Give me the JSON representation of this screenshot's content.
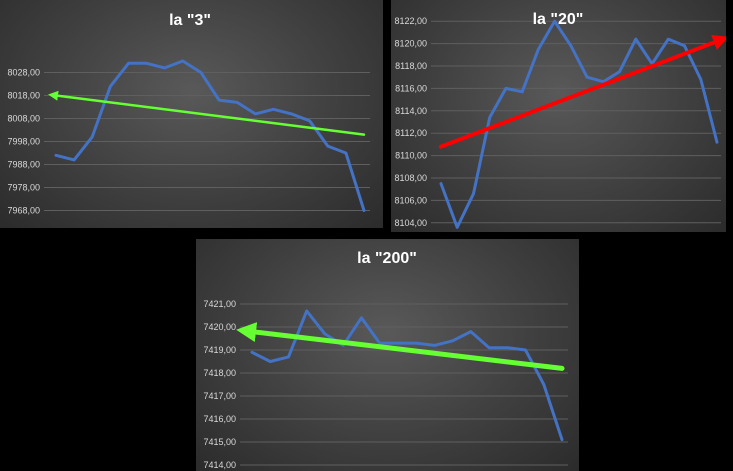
{
  "chart_data": [
    {
      "type": "line",
      "title": "la \"3\"",
      "ylim": [
        7963,
        8043
      ],
      "yticks": [
        "7968,00",
        "7978,00",
        "7988,00",
        "7998,00",
        "8008,00",
        "8018,00",
        "8028,00"
      ],
      "grid": true,
      "series": [
        {
          "values": [
            7992,
            7990,
            8000,
            8022,
            8032,
            8032,
            8030,
            8033,
            8028,
            8016,
            8015,
            8010,
            8012,
            8010,
            8007,
            7996,
            7993,
            7968
          ]
        }
      ],
      "trend_arrow": {
        "from": [
          0,
          8018
        ],
        "to": [
          17,
          8001
        ],
        "color": "#66ff33",
        "arrowhead_at_start": true
      }
    },
    {
      "type": "line",
      "title": "la \"20\"",
      "ylim": [
        8103,
        8123
      ],
      "yticks": [
        "8104,00",
        "8106,00",
        "8108,00",
        "8110,00",
        "8112,00",
        "8114,00",
        "8116,00",
        "8118,00",
        "8120,00",
        "8122,00"
      ],
      "grid": true,
      "series": [
        {
          "values": [
            8107.5,
            8103.6,
            8106.6,
            8113.4,
            8116.0,
            8115.7,
            8119.5,
            8122.0,
            8119.8,
            8117.0,
            8116.6,
            8117.5,
            8120.4,
            8118.2,
            8120.4,
            8119.8,
            8116.8,
            8111.2
          ]
        }
      ],
      "trend_arrow": {
        "from": [
          17,
          8120.2
        ],
        "to": [
          0,
          8110.8
        ],
        "color": "#ff0000",
        "arrowhead_at_start": true
      }
    },
    {
      "type": "line",
      "title": "la \"200\"",
      "ylim": [
        7414,
        7422
      ],
      "yticks": [
        "7414,00",
        "7415,00",
        "7416,00",
        "7417,00",
        "7418,00",
        "7419,00",
        "7420,00",
        "7421,00"
      ],
      "grid": true,
      "series": [
        {
          "values": [
            7418.9,
            7418.5,
            7418.7,
            7420.7,
            7419.7,
            7419.2,
            7420.4,
            7419.3,
            7419.3,
            7419.3,
            7419.2,
            7419.4,
            7419.8,
            7419.1,
            7419.1,
            7419.0,
            7417.5,
            7415.1
          ]
        }
      ],
      "trend_arrow": {
        "from": [
          0,
          7419.8
        ],
        "to": [
          17,
          7418.2
        ],
        "color": "#66ff33",
        "arrowhead_at_start": true
      }
    }
  ]
}
